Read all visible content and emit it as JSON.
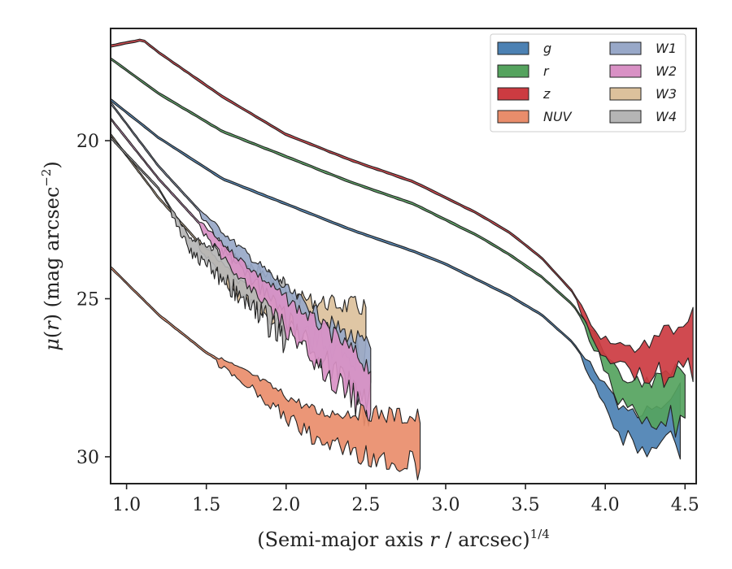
{
  "chart_data": {
    "type": "area",
    "xlabel": "(Semi-major axis r / arcsec)",
    "xlabel_parts": {
      "pre": "(Semi-major axis ",
      "var": "r",
      "post": " / arcsec)",
      "sup": "1/4"
    },
    "ylabel": "μ(r) (mag arcsec⁻²)",
    "ylabel_parts": {
      "mu": "μ",
      "open": "(",
      "var": "r",
      "close": ") (mag arcsec",
      "sup": "−2",
      "end": ")"
    },
    "xlim": [
      0.9,
      4.57
    ],
    "ylim": [
      30.85,
      16.45
    ],
    "xticks": [
      1.0,
      1.5,
      2.0,
      2.5,
      3.0,
      3.5,
      4.0,
      4.5
    ],
    "xtick_labels": [
      "1.0",
      "1.5",
      "2.0",
      "2.5",
      "3.0",
      "3.5",
      "4.0",
      "4.5"
    ],
    "yticks": [
      20,
      25,
      30
    ],
    "ytick_labels": [
      "20",
      "25",
      "30"
    ],
    "grid": false,
    "legend_position": "top-right",
    "series": [
      {
        "name": "g",
        "color": "#4c81b3",
        "x": [
          0.9,
          1.2,
          1.6,
          2.0,
          2.4,
          2.8,
          3.0,
          3.2,
          3.4,
          3.6,
          3.8,
          3.95,
          4.1,
          4.3,
          4.47
        ],
        "y": [
          18.7,
          19.9,
          21.2,
          22.0,
          22.8,
          23.5,
          23.9,
          24.4,
          24.9,
          25.5,
          26.4,
          27.5,
          28.8,
          29.0,
          28.5
        ]
      },
      {
        "name": "r",
        "color": "#55a35e",
        "x": [
          0.9,
          1.2,
          1.6,
          2.0,
          2.4,
          2.8,
          3.0,
          3.2,
          3.4,
          3.6,
          3.8,
          3.95,
          4.1,
          4.3,
          4.5
        ],
        "y": [
          17.4,
          18.5,
          19.7,
          20.5,
          21.3,
          22.0,
          22.5,
          23.0,
          23.6,
          24.3,
          25.2,
          26.4,
          27.8,
          28.0,
          27.8
        ]
      },
      {
        "name": "z",
        "color": "#cc3b41",
        "x": [
          0.9,
          1.1,
          1.2,
          1.6,
          2.0,
          2.4,
          2.8,
          3.0,
          3.2,
          3.4,
          3.6,
          3.8,
          3.95,
          4.2,
          4.55
        ],
        "y": [
          17.0,
          16.8,
          17.2,
          18.6,
          19.8,
          20.6,
          21.3,
          21.8,
          22.3,
          22.9,
          23.7,
          24.8,
          26.3,
          26.9,
          26.1
        ]
      },
      {
        "name": "NUV",
        "color": "#e98d6b",
        "x": [
          0.9,
          1.2,
          1.5,
          1.8,
          2.0,
          2.2,
          2.5,
          2.84
        ],
        "y": [
          24.0,
          25.5,
          26.7,
          27.6,
          28.3,
          28.9,
          29.0,
          29.3
        ]
      },
      {
        "name": "W1",
        "color": "#98a8c8",
        "x": [
          0.9,
          1.2,
          1.6,
          2.0,
          2.3,
          2.53
        ],
        "y": [
          18.8,
          20.8,
          23.0,
          25.0,
          26.3,
          27.1
        ]
      },
      {
        "name": "W2",
        "color": "#d991c5",
        "x": [
          0.9,
          1.2,
          1.6,
          2.0,
          2.3,
          2.53
        ],
        "y": [
          19.3,
          21.2,
          23.4,
          25.3,
          26.6,
          27.7
        ]
      },
      {
        "name": "W3",
        "color": "#dcc19c",
        "x": [
          0.9,
          1.2,
          1.45,
          1.7,
          1.9,
          2.2,
          2.5
        ],
        "y": [
          19.8,
          21.8,
          23.2,
          24.6,
          25.0,
          25.5,
          25.8
        ]
      },
      {
        "name": "W4",
        "color": "#b5b5b5",
        "x": [
          0.9,
          1.2,
          1.4,
          1.6,
          1.8,
          2.0
        ],
        "y": [
          19.9,
          21.5,
          23.2,
          23.8,
          24.5,
          25.2
        ]
      }
    ]
  }
}
